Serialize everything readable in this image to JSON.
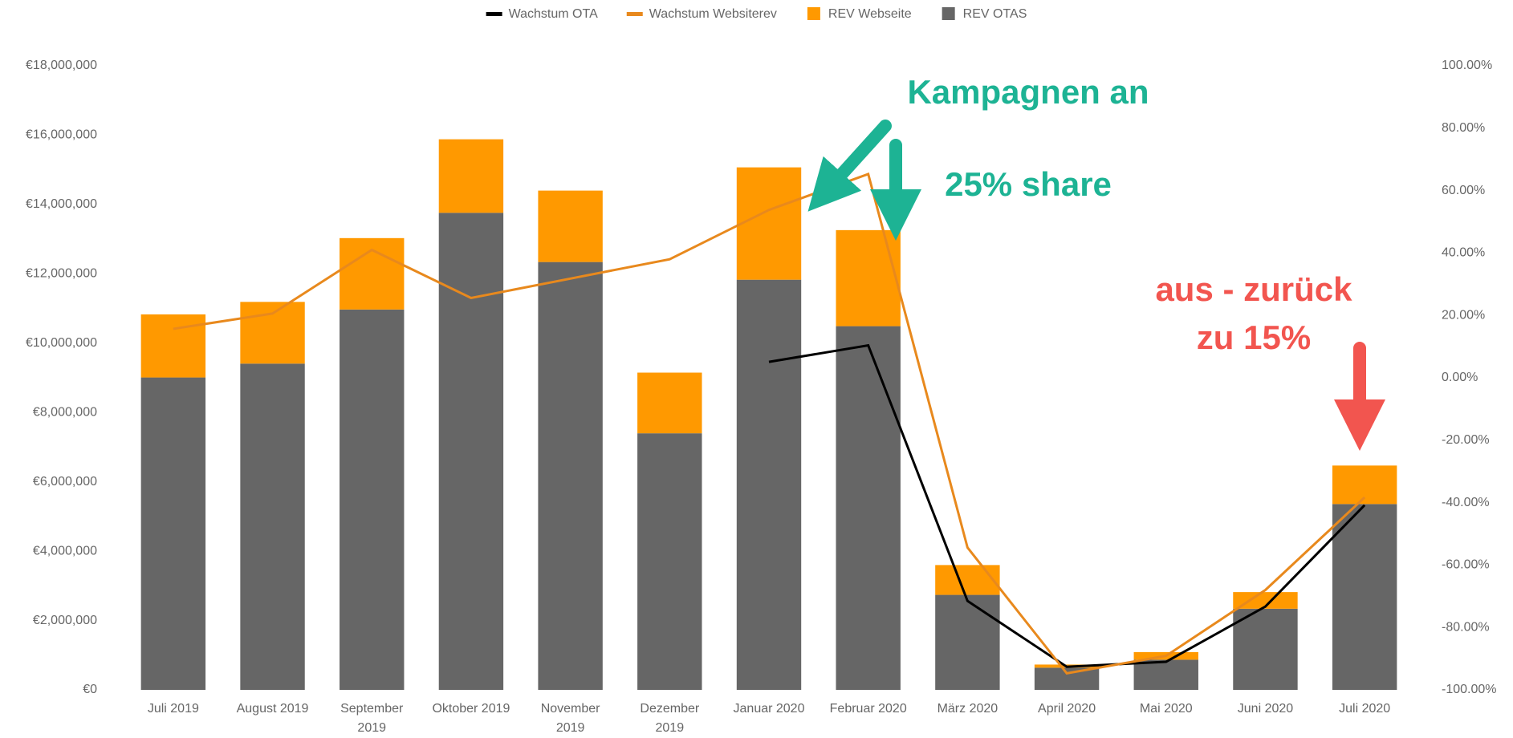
{
  "chart_data": {
    "type": "bar",
    "categories": [
      "Juli 2019",
      "August 2019",
      "September 2019",
      "Oktober 2019",
      "November 2019",
      "Dezember 2019",
      "Januar 2020",
      "Februar 2020",
      "März 2020",
      "April 2020",
      "Mai 2020",
      "Juni 2020",
      "Juli 2020"
    ],
    "series": [
      {
        "name": "Wachstum OTA",
        "type": "line",
        "axis": "y2",
        "color": "#000000",
        "values": [
          null,
          null,
          null,
          null,
          null,
          null,
          5.1,
          10.4,
          -71.5,
          -92.6,
          -91.0,
          -73.3,
          -40.8
        ]
      },
      {
        "name": "Wachstum Websiterev",
        "type": "line",
        "axis": "y2",
        "color": "#e8891d",
        "values": [
          15.7,
          20.6,
          41.0,
          25.6,
          31.8,
          38.0,
          53.8,
          65.3,
          -54.4,
          -94.7,
          -89.1,
          -68.0,
          -38.3
        ]
      },
      {
        "name": "REV Webseite",
        "type": "bar",
        "color": "#ff9900",
        "values": [
          1820000,
          1780000,
          2060000,
          2120000,
          2060000,
          1750000,
          3240000,
          2770000,
          860000,
          90000,
          220000,
          480000,
          1110000
        ]
      },
      {
        "name": "REV OTAS",
        "type": "bar",
        "color": "#666666",
        "values": [
          9010000,
          9410000,
          10970000,
          13760000,
          12340000,
          7400000,
          11830000,
          10490000,
          2740000,
          640000,
          870000,
          2340000,
          5360000
        ]
      }
    ],
    "ylim": [
      0,
      18000000
    ],
    "yticks": [
      {
        "value": 0,
        "label": "€0"
      },
      {
        "value": 2000000,
        "label": "€2,000,000"
      },
      {
        "value": 4000000,
        "label": "€4,000,000"
      },
      {
        "value": 6000000,
        "label": "€6,000,000"
      },
      {
        "value": 8000000,
        "label": "€8,000,000"
      },
      {
        "value": 10000000,
        "label": "€10,000,000"
      },
      {
        "value": 12000000,
        "label": "€12,000,000"
      },
      {
        "value": 14000000,
        "label": "€14,000,000"
      },
      {
        "value": 16000000,
        "label": "€16,000,000"
      },
      {
        "value": 18000000,
        "label": "€18,000,000"
      }
    ],
    "y2lim": [
      -100,
      100
    ],
    "y2ticks": [
      {
        "value": -100,
        "label": "-100.00%"
      },
      {
        "value": -80,
        "label": "-80.00%"
      },
      {
        "value": -60,
        "label": "-60.00%"
      },
      {
        "value": -40,
        "label": "-40.00%"
      },
      {
        "value": -20,
        "label": "-20.00%"
      },
      {
        "value": 0,
        "label": "0.00%"
      },
      {
        "value": 20,
        "label": "20.00%"
      },
      {
        "value": 40,
        "label": "40.00%"
      },
      {
        "value": 60,
        "label": "60.00%"
      },
      {
        "value": 80,
        "label": "80.00%"
      },
      {
        "value": 100,
        "label": "100.00%"
      }
    ],
    "legend": "top",
    "annotations": [
      {
        "text": "Kampagnen an",
        "color": "#1db394"
      },
      {
        "text": "25% share",
        "color": "#1db394"
      },
      {
        "text": "aus - zurück",
        "color": "#f2554f"
      },
      {
        "text": "zu 15%",
        "color": "#f2554f"
      }
    ]
  }
}
